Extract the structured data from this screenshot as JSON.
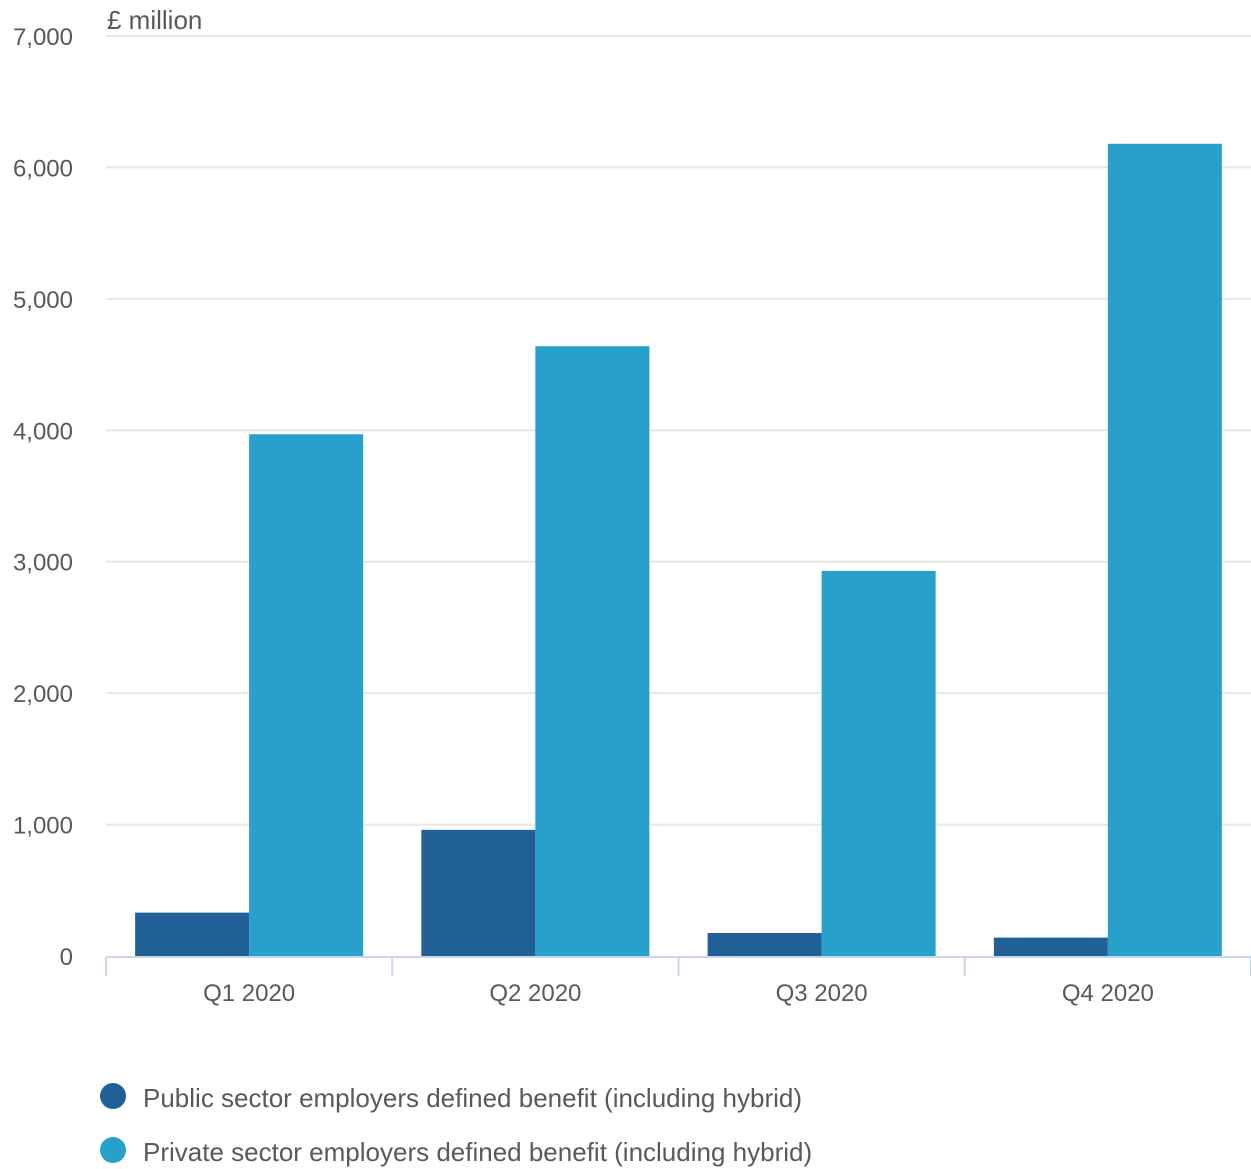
{
  "chart_data": {
    "type": "bar",
    "title": "",
    "unit_label": "£ million",
    "xlabel": "",
    "ylabel": "",
    "categories": [
      "Q1 2020",
      "Q2 2020",
      "Q3 2020",
      "Q4 2020"
    ],
    "series": [
      {
        "name": "Public sector employers defined benefit (including hybrid)",
        "color": "#206095",
        "values": [
          330,
          960,
          175,
          140
        ]
      },
      {
        "name": "Private sector employers defined benefit (including hybrid)",
        "color": "#27a0cc",
        "values": [
          3970,
          4640,
          2930,
          6180
        ]
      }
    ],
    "ylim": [
      0,
      7000
    ],
    "yticks": [
      0,
      1000,
      2000,
      3000,
      4000,
      5000,
      6000,
      7000
    ],
    "ytick_labels": [
      "0",
      "1,000",
      "2,000",
      "3,000",
      "4,000",
      "5,000",
      "6,000",
      "7,000"
    ],
    "grid": true,
    "legend_position": "bottom-left"
  }
}
